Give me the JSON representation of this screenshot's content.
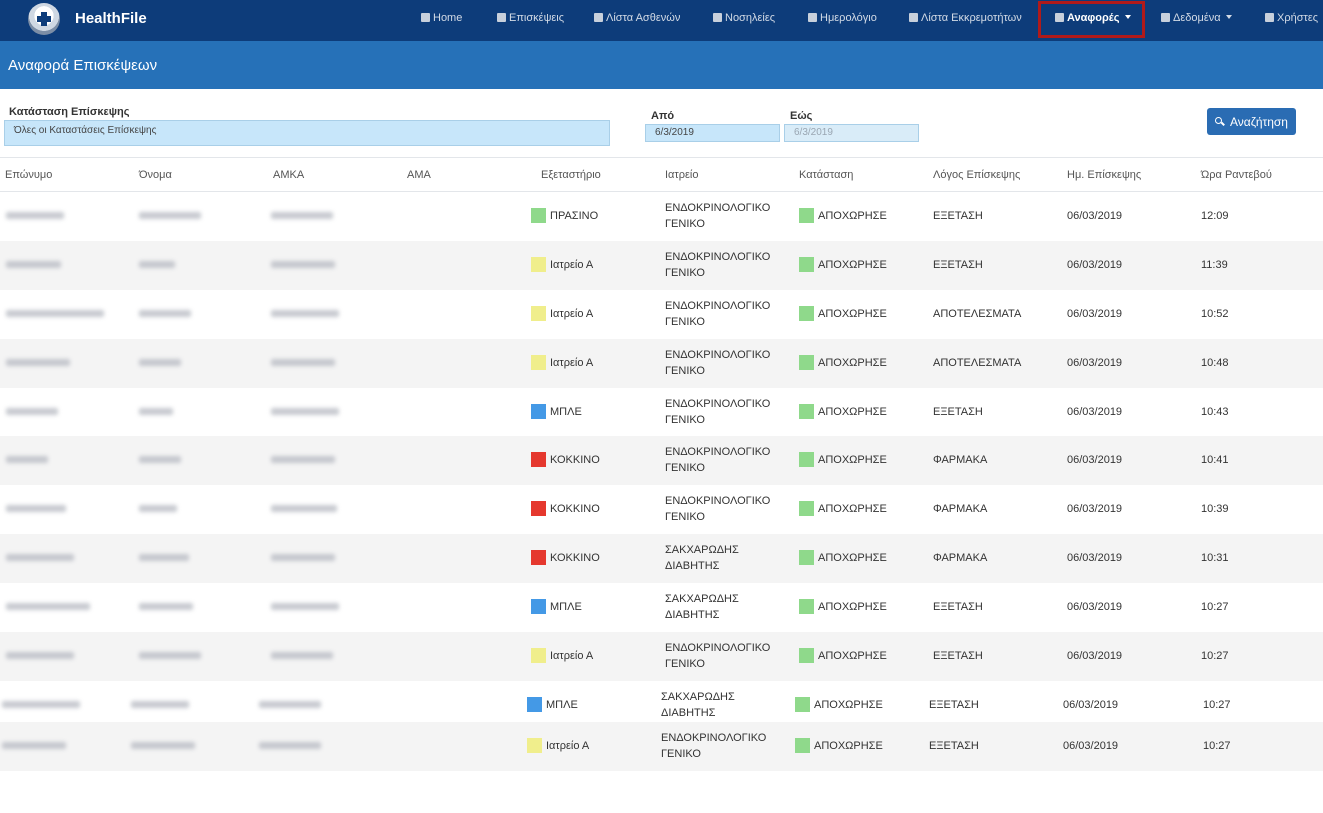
{
  "brand": "HealthFile",
  "nav": [
    {
      "label": "Home",
      "icon": "building-icon"
    },
    {
      "label": "Επισκέψεις",
      "icon": "file-icon"
    },
    {
      "label": "Λίστα Ασθενών",
      "icon": "user-icon"
    },
    {
      "label": "Νοσηλείες",
      "icon": "hospital-icon"
    },
    {
      "label": "Ημερολόγιο",
      "icon": "calendar-icon"
    },
    {
      "label": "Λίστα Εκκρεμοτήτων",
      "icon": "clipboard-icon"
    },
    {
      "label": "Αναφορές",
      "icon": "search-icon"
    },
    {
      "label": "Δεδομένα",
      "icon": "database-icon"
    },
    {
      "label": "Χρήστες",
      "icon": "user-icon"
    }
  ],
  "page_title": "Αναφορά Επισκέψεων",
  "filters": {
    "status_label": "Κατάσταση Επίσκεψης",
    "status_value": "Όλες οι Καταστάσεις Επίσκεψης",
    "from_label": "Από",
    "from_value": "6/3/2019",
    "to_label": "Εώς",
    "to_value": "6/3/2019",
    "search_button": "Αναζήτηση"
  },
  "columns": [
    "Επώνυμο",
    "Όνομα",
    "ΑΜΚΑ",
    "ΑΜΑ",
    "Εξεταστήριο",
    "Ιατρείο",
    "Κατάσταση",
    "Λόγος Επίσκεψης",
    "Ημ. Επίσκεψης",
    "Ώρα Ραντεβού"
  ],
  "colors": {
    "green": "#8fd98b",
    "yellow": "#f0ee8c",
    "blue": "#4499e6",
    "red": "#e5382e"
  },
  "rows": [
    {
      "room": "ΠΡΑΣΙΝΟ",
      "room_color": "green",
      "clinic1": "ΕΝΔΟΚΡΙΝΟΛΟΓΙΚΟ",
      "clinic2": "ΓΕΝΙΚΟ",
      "status": "ΑΠΟΧΩΡΗΣΕ",
      "reason": "ΕΞΕΤΑΣΗ",
      "date": "06/03/2019",
      "time": "12:09"
    },
    {
      "room": "Ιατρείο Α",
      "room_color": "yellow",
      "clinic1": "ΕΝΔΟΚΡΙΝΟΛΟΓΙΚΟ",
      "clinic2": "ΓΕΝΙΚΟ",
      "status": "ΑΠΟΧΩΡΗΣΕ",
      "reason": "ΕΞΕΤΑΣΗ",
      "date": "06/03/2019",
      "time": "11:39"
    },
    {
      "room": "Ιατρείο Α",
      "room_color": "yellow",
      "clinic1": "ΕΝΔΟΚΡΙΝΟΛΟΓΙΚΟ",
      "clinic2": "ΓΕΝΙΚΟ",
      "status": "ΑΠΟΧΩΡΗΣΕ",
      "reason": "ΑΠΟΤΕΛΕΣΜΑΤΑ",
      "date": "06/03/2019",
      "time": "10:52"
    },
    {
      "room": "Ιατρείο Α",
      "room_color": "yellow",
      "clinic1": "ΕΝΔΟΚΡΙΝΟΛΟΓΙΚΟ",
      "clinic2": "ΓΕΝΙΚΟ",
      "status": "ΑΠΟΧΩΡΗΣΕ",
      "reason": "ΑΠΟΤΕΛΕΣΜΑΤΑ",
      "date": "06/03/2019",
      "time": "10:48"
    },
    {
      "room": "ΜΠΛΕ",
      "room_color": "blue",
      "clinic1": "ΕΝΔΟΚΡΙΝΟΛΟΓΙΚΟ",
      "clinic2": "ΓΕΝΙΚΟ",
      "status": "ΑΠΟΧΩΡΗΣΕ",
      "reason": "ΕΞΕΤΑΣΗ",
      "date": "06/03/2019",
      "time": "10:43"
    },
    {
      "room": "ΚΟΚΚΙΝΟ",
      "room_color": "red",
      "clinic1": "ΕΝΔΟΚΡΙΝΟΛΟΓΙΚΟ",
      "clinic2": "ΓΕΝΙΚΟ",
      "status": "ΑΠΟΧΩΡΗΣΕ",
      "reason": "ΦΑΡΜΑΚΑ",
      "date": "06/03/2019",
      "time": "10:41"
    },
    {
      "room": "ΚΟΚΚΙΝΟ",
      "room_color": "red",
      "clinic1": "ΕΝΔΟΚΡΙΝΟΛΟΓΙΚΟ",
      "clinic2": "ΓΕΝΙΚΟ",
      "status": "ΑΠΟΧΩΡΗΣΕ",
      "reason": "ΦΑΡΜΑΚΑ",
      "date": "06/03/2019",
      "time": "10:39"
    },
    {
      "room": "ΚΟΚΚΙΝΟ",
      "room_color": "red",
      "clinic1": "ΣΑΚΧΑΡΩΔΗΣ",
      "clinic2": "ΔΙΑΒΗΤΗΣ",
      "status": "ΑΠΟΧΩΡΗΣΕ",
      "reason": "ΦΑΡΜΑΚΑ",
      "date": "06/03/2019",
      "time": "10:31"
    },
    {
      "room": "ΜΠΛΕ",
      "room_color": "blue",
      "clinic1": "ΣΑΚΧΑΡΩΔΗΣ",
      "clinic2": "ΔΙΑΒΗΤΗΣ",
      "status": "ΑΠΟΧΩΡΗΣΕ",
      "reason": "ΕΞΕΤΑΣΗ",
      "date": "06/03/2019",
      "time": "10:27"
    },
    {
      "room": "Ιατρείο Α",
      "room_color": "yellow",
      "clinic1": "ΕΝΔΟΚΡΙΝΟΛΟΓΙΚΟ",
      "clinic2": "ΓΕΝΙΚΟ",
      "status": "ΑΠΟΧΩΡΗΣΕ",
      "reason": "ΕΞΕΤΑΣΗ",
      "date": "06/03/2019",
      "time": "10:27"
    },
    {
      "room": "ΜΠΛΕ",
      "room_color": "blue",
      "clinic1": "ΣΑΚΧΑΡΩΔΗΣ",
      "clinic2": "ΔΙΑΒΗΤΗΣ",
      "status": "ΑΠΟΧΩΡΗΣΕ",
      "reason": "ΕΞΕΤΑΣΗ",
      "date": "06/03/2019",
      "time": "10:27"
    },
    {
      "room": "Ιατρείο Α",
      "room_color": "yellow",
      "clinic1": "ΕΝΔΟΚΡΙΝΟΛΟΓΙΚΟ",
      "clinic2": "ΓΕΝΙΚΟ",
      "status": "ΑΠΟΧΩΡΗΣΕ",
      "reason": "ΕΞΕΤΑΣΗ",
      "date": "06/03/2019",
      "time": "10:27"
    }
  ]
}
